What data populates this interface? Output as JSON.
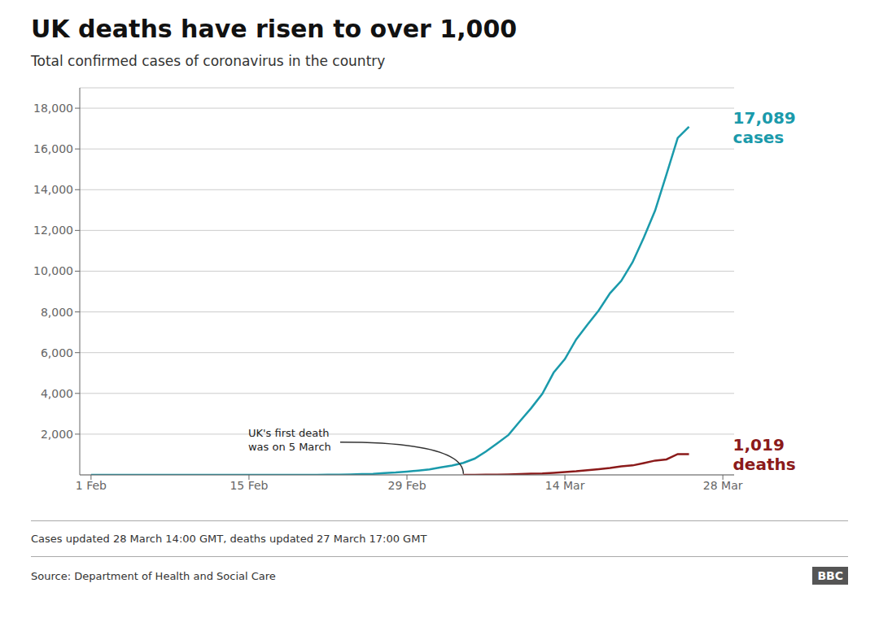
{
  "chart_data": {
    "type": "line",
    "title": "UK deaths have risen to over 1,000",
    "subtitle": "Total confirmed cases of coronavirus in the country",
    "series": [
      {
        "end_label": [
          "17,089",
          "cases"
        ],
        "color": "#1a9aab",
        "x": [
          0,
          1,
          2,
          3,
          4,
          5,
          6,
          7,
          8,
          9,
          10,
          11,
          12,
          13,
          14,
          15,
          16,
          17,
          18,
          19,
          20,
          21,
          22,
          23,
          24,
          25,
          26,
          27,
          28,
          29,
          30,
          31,
          32,
          33,
          34,
          35,
          36,
          37,
          38,
          39,
          40,
          41,
          42,
          43,
          44,
          45,
          46,
          47,
          48,
          49,
          50,
          51,
          52,
          53
        ],
        "values": [
          2,
          2,
          2,
          2,
          3,
          3,
          3,
          3,
          3,
          3,
          3,
          3,
          3,
          3,
          3,
          3,
          3,
          3,
          3,
          4,
          4,
          9,
          13,
          23,
          36,
          51,
          87,
          116,
          164,
          214,
          272,
          373,
          456,
          590,
          798,
          1144,
          1551,
          1960,
          2626,
          3269,
          3983,
          5018,
          5683,
          6650,
          7374,
          8077,
          8918,
          9529,
          10442,
          11658,
          12982,
          14745,
          16537,
          17089
        ]
      },
      {
        "end_label": [
          "1,019",
          "deaths"
        ],
        "color": "#8b1a1a",
        "x": [
          33,
          34,
          35,
          36,
          37,
          38,
          39,
          40,
          41,
          42,
          43,
          44,
          45,
          46,
          47,
          48,
          49,
          50,
          51,
          52,
          53
        ],
        "values": [
          1,
          2,
          6,
          10,
          21,
          35,
          56,
          71,
          104,
          144,
          177,
          233,
          282,
          335,
          423,
          465,
          578,
          703,
          759,
          1019,
          1019
        ]
      }
    ],
    "xlim": [
      -1,
      57
    ],
    "xticks": [
      {
        "value": 0,
        "label": "1 Feb"
      },
      {
        "value": 14,
        "label": "15 Feb"
      },
      {
        "value": 28,
        "label": "29 Feb"
      },
      {
        "value": 42,
        "label": "14 Mar"
      },
      {
        "value": 56,
        "label": "28 Mar"
      }
    ],
    "ylim": [
      0,
      19000
    ],
    "yticks": [
      {
        "value": 2000,
        "label": "2,000"
      },
      {
        "value": 4000,
        "label": "4,000"
      },
      {
        "value": 6000,
        "label": "6,000"
      },
      {
        "value": 8000,
        "label": "8,000"
      },
      {
        "value": 10000,
        "label": "10,000"
      },
      {
        "value": 12000,
        "label": "12,000"
      },
      {
        "value": 14000,
        "label": "14,000"
      },
      {
        "value": 16000,
        "label": "16,000"
      },
      {
        "value": 18000,
        "label": "18,000"
      }
    ],
    "grid": true,
    "annotations": [
      {
        "text": "UK's first death\nwas on 5 March",
        "x": 14,
        "y": 2400,
        "arrow_to": [
          33,
          50
        ],
        "color": "#222222"
      }
    ],
    "footer": [
      "Cases updated 28 March 14:00 GMT, deaths updated 27 March 17:00 GMT",
      "Source: Department of Health and Social Care"
    ],
    "logo": "BBC"
  }
}
